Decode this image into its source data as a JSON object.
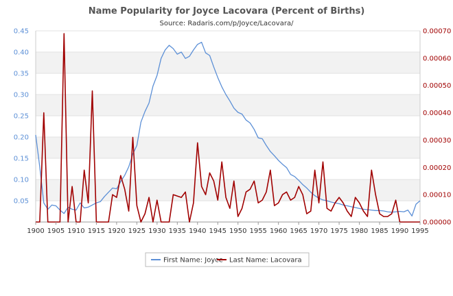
{
  "chart_data": {
    "type": "line",
    "title": "Name Popularity for Joyce Lacovara (Percent of Births)",
    "subtitle": "Source: Radaris.com/p/Joyce/Lacovara/",
    "xlim": [
      1900,
      1995
    ],
    "x_ticks": [
      "1900",
      "1905",
      "1910",
      "1915",
      "1920",
      "1925",
      "1930",
      "1935",
      "1940",
      "1945",
      "1950",
      "1955",
      "1960",
      "1965",
      "1970",
      "1975",
      "1980",
      "1985",
      "1990",
      "1995"
    ],
    "y_left": {
      "ylim": [
        0,
        0.45
      ],
      "ticks": [
        "0.05",
        "0.10",
        "0.15",
        "0.20",
        "0.25",
        "0.30",
        "0.35",
        "0.40",
        "0.45"
      ],
      "tick_values": [
        0.05,
        0.1,
        0.15,
        0.2,
        0.25,
        0.3,
        0.35,
        0.4,
        0.45
      ]
    },
    "y_right": {
      "ylim": [
        0,
        0.0007
      ],
      "ticks": [
        "0.00000",
        "0.00010",
        "0.00020",
        "0.00030",
        "0.00040",
        "0.00050",
        "0.00060",
        "0.00070"
      ],
      "tick_values": [
        0,
        0.0001,
        0.0002,
        0.0003,
        0.0004,
        0.0005,
        0.0006,
        0.0007
      ]
    },
    "grid": "horizontal bands",
    "legend_position": "bottom",
    "series": [
      {
        "name": "First Name: Joyce",
        "axis": "left",
        "color": "#5b8fd6",
        "x": [
          1900,
          1901,
          1902,
          1903,
          1904,
          1905,
          1906,
          1907,
          1908,
          1909,
          1910,
          1911,
          1912,
          1913,
          1914,
          1915,
          1916,
          1917,
          1918,
          1919,
          1920,
          1921,
          1922,
          1923,
          1924,
          1925,
          1926,
          1927,
          1928,
          1929,
          1930,
          1931,
          1932,
          1933,
          1934,
          1935,
          1936,
          1937,
          1938,
          1939,
          1940,
          1941,
          1942,
          1943,
          1944,
          1945,
          1946,
          1947,
          1948,
          1949,
          1950,
          1951,
          1952,
          1953,
          1954,
          1955,
          1956,
          1957,
          1958,
          1959,
          1960,
          1961,
          1962,
          1963,
          1964,
          1965,
          1966,
          1967,
          1968,
          1969,
          1970,
          1971,
          1972,
          1973,
          1974,
          1975,
          1976,
          1977,
          1978,
          1979,
          1980,
          1981,
          1982,
          1983,
          1984,
          1985,
          1986,
          1987,
          1988,
          1989,
          1990,
          1991,
          1992,
          1993,
          1994,
          1995
        ],
        "values": [
          0.205,
          0.13,
          0.045,
          0.03,
          0.04,
          0.038,
          0.028,
          0.02,
          0.035,
          0.03,
          0.028,
          0.045,
          0.033,
          0.035,
          0.04,
          0.045,
          0.048,
          0.06,
          0.07,
          0.08,
          0.078,
          0.095,
          0.11,
          0.13,
          0.16,
          0.18,
          0.235,
          0.26,
          0.28,
          0.32,
          0.345,
          0.385,
          0.405,
          0.416,
          0.408,
          0.395,
          0.4,
          0.385,
          0.39,
          0.405,
          0.418,
          0.423,
          0.398,
          0.392,
          0.365,
          0.34,
          0.318,
          0.3,
          0.285,
          0.268,
          0.258,
          0.254,
          0.24,
          0.233,
          0.218,
          0.198,
          0.196,
          0.18,
          0.166,
          0.156,
          0.145,
          0.136,
          0.128,
          0.112,
          0.107,
          0.098,
          0.088,
          0.08,
          0.07,
          0.062,
          0.056,
          0.052,
          0.05,
          0.047,
          0.045,
          0.043,
          0.04,
          0.038,
          0.036,
          0.034,
          0.032,
          0.03,
          0.029,
          0.028,
          0.027,
          0.027,
          0.026,
          0.024,
          0.023,
          0.024,
          0.025,
          0.024,
          0.028,
          0.014,
          0.042,
          0.05
        ]
      },
      {
        "name": "Last Name: Lacovara",
        "axis": "right",
        "color": "#a00000",
        "x": [
          1900,
          1901,
          1902,
          1903,
          1904,
          1905,
          1906,
          1907,
          1908,
          1909,
          1910,
          1911,
          1912,
          1913,
          1914,
          1915,
          1916,
          1917,
          1918,
          1919,
          1920,
          1921,
          1922,
          1923,
          1924,
          1925,
          1926,
          1927,
          1928,
          1929,
          1930,
          1931,
          1932,
          1933,
          1934,
          1935,
          1936,
          1937,
          1938,
          1939,
          1940,
          1941,
          1942,
          1943,
          1944,
          1945,
          1946,
          1947,
          1948,
          1949,
          1950,
          1951,
          1952,
          1953,
          1954,
          1955,
          1956,
          1957,
          1958,
          1959,
          1960,
          1961,
          1962,
          1963,
          1964,
          1965,
          1966,
          1967,
          1968,
          1969,
          1970,
          1971,
          1972,
          1973,
          1974,
          1975,
          1976,
          1977,
          1978,
          1979,
          1980,
          1981,
          1982,
          1983,
          1984,
          1985,
          1986,
          1987,
          1988,
          1989,
          1990,
          1991,
          1992,
          1993,
          1994,
          1995
        ],
        "values": [
          0,
          0,
          0.0004,
          0,
          0,
          0,
          0,
          0.00069,
          0,
          0.00013,
          0,
          0,
          0.00019,
          7e-05,
          0.00048,
          0,
          0,
          0,
          0,
          0.0001,
          9e-05,
          0.00017,
          0.00012,
          4e-05,
          0.00031,
          6e-05,
          0,
          3e-05,
          9e-05,
          0,
          8e-05,
          0,
          0,
          0,
          0.0001,
          9.5e-05,
          9e-05,
          0.00011,
          0,
          7e-05,
          0.00029,
          0.00013,
          0.0001,
          0.00018,
          0.00015,
          8e-05,
          0.00022,
          9e-05,
          5e-05,
          0.00015,
          2e-05,
          5e-05,
          0.00011,
          0.00012,
          0.00015,
          7e-05,
          8e-05,
          0.00011,
          0.00019,
          6e-05,
          7e-05,
          0.0001,
          0.00011,
          8e-05,
          9e-05,
          0.00013,
          0.0001,
          3e-05,
          4e-05,
          0.00019,
          7e-05,
          0.00022,
          5e-05,
          4e-05,
          7e-05,
          9e-05,
          7e-05,
          4e-05,
          2e-05,
          9e-05,
          7e-05,
          4e-05,
          2e-05,
          0.00019,
          0.0001,
          3e-05,
          2e-05,
          2e-05,
          3e-05,
          8e-05,
          0,
          0,
          0,
          0,
          0,
          0
        ]
      }
    ]
  }
}
